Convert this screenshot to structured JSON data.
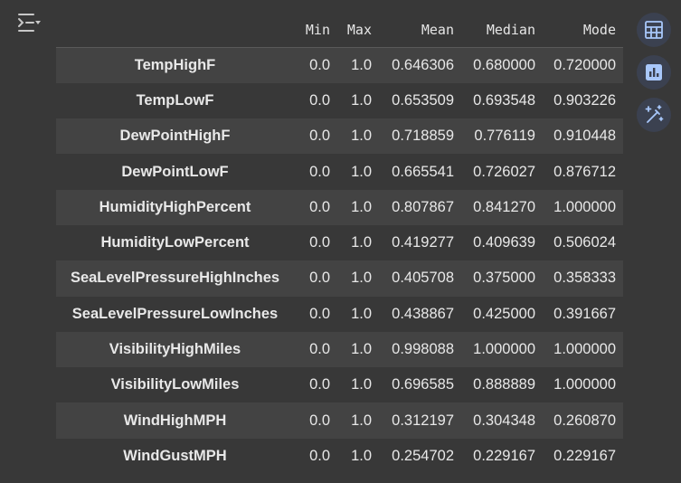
{
  "table": {
    "columns": [
      "",
      "Min",
      "Max",
      "Mean",
      "Median",
      "Mode"
    ],
    "rows": [
      {
        "name": "TempHighF",
        "min": "0.0",
        "max": "1.0",
        "mean": "0.646306",
        "median": "0.680000",
        "mode": "0.720000"
      },
      {
        "name": "TempLowF",
        "min": "0.0",
        "max": "1.0",
        "mean": "0.653509",
        "median": "0.693548",
        "mode": "0.903226"
      },
      {
        "name": "DewPointHighF",
        "min": "0.0",
        "max": "1.0",
        "mean": "0.718859",
        "median": "0.776119",
        "mode": "0.910448"
      },
      {
        "name": "DewPointLowF",
        "min": "0.0",
        "max": "1.0",
        "mean": "0.665541",
        "median": "0.726027",
        "mode": "0.876712"
      },
      {
        "name": "HumidityHighPercent",
        "min": "0.0",
        "max": "1.0",
        "mean": "0.807867",
        "median": "0.841270",
        "mode": "1.000000"
      },
      {
        "name": "HumidityLowPercent",
        "min": "0.0",
        "max": "1.0",
        "mean": "0.419277",
        "median": "0.409639",
        "mode": "0.506024"
      },
      {
        "name": "SeaLevelPressureHighInches",
        "min": "0.0",
        "max": "1.0",
        "mean": "0.405708",
        "median": "0.375000",
        "mode": "0.358333"
      },
      {
        "name": "SeaLevelPressureLowInches",
        "min": "0.0",
        "max": "1.0",
        "mean": "0.438867",
        "median": "0.425000",
        "mode": "0.391667"
      },
      {
        "name": "VisibilityHighMiles",
        "min": "0.0",
        "max": "1.0",
        "mean": "0.998088",
        "median": "1.000000",
        "mode": "1.000000"
      },
      {
        "name": "VisibilityLowMiles",
        "min": "0.0",
        "max": "1.0",
        "mean": "0.696585",
        "median": "0.888889",
        "mode": "1.000000"
      },
      {
        "name": "WindHighMPH",
        "min": "0.0",
        "max": "1.0",
        "mean": "0.312197",
        "median": "0.304348",
        "mode": "0.260870"
      },
      {
        "name": "WindGustMPH",
        "min": "0.0",
        "max": "1.0",
        "mean": "0.254702",
        "median": "0.229167",
        "mode": "0.229167"
      }
    ]
  },
  "icons": {
    "output_toggle": "output-menu-icon",
    "tools": [
      "table-view-icon",
      "chart-suggest-icon",
      "magic-edit-icon"
    ]
  },
  "colors": {
    "background": "#383838",
    "row_stripe": "#434343",
    "tool_button": "#3b4150",
    "tool_icon": "#a8c7fa",
    "text": "#e8e8e8"
  }
}
